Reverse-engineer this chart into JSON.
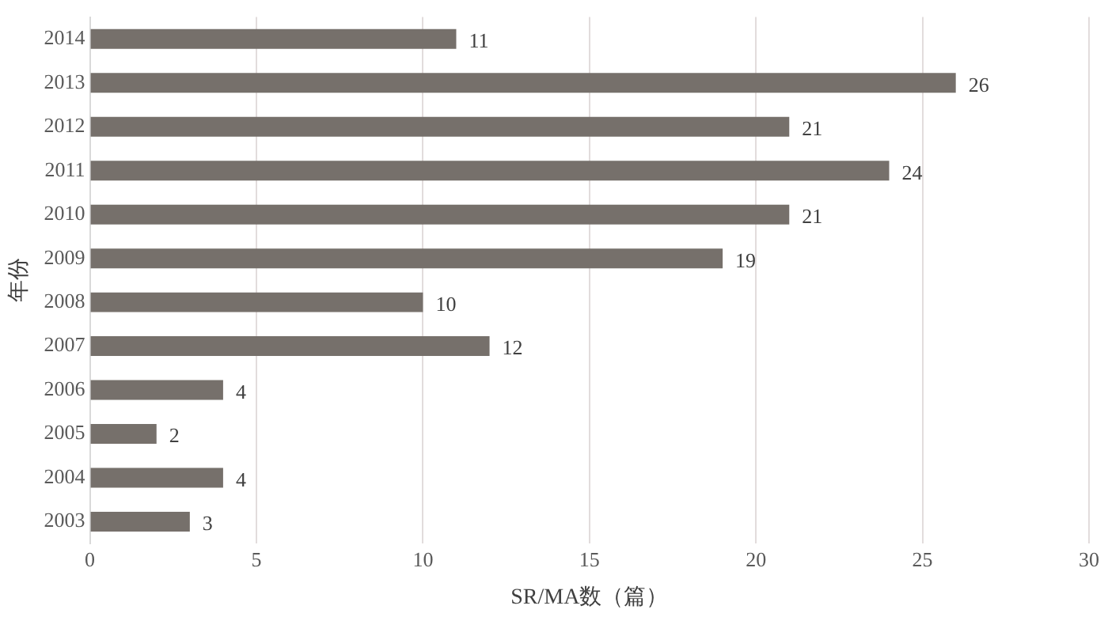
{
  "chart_data": {
    "type": "bar",
    "orientation": "horizontal",
    "xlabel": "SR/MA数（篇）",
    "ylabel": "年份",
    "categories": [
      "2014",
      "2013",
      "2012",
      "2011",
      "2010",
      "2009",
      "2008",
      "2007",
      "2006",
      "2005",
      "2004",
      "2003"
    ],
    "values": [
      11,
      26,
      21,
      24,
      21,
      19,
      10,
      12,
      4,
      2,
      4,
      3
    ],
    "color": "#76706b",
    "xlim": [
      0,
      30
    ],
    "xticks": [
      0,
      5,
      10,
      15,
      20,
      25,
      30
    ],
    "grid": "x",
    "data_labels": true,
    "legend": false
  }
}
